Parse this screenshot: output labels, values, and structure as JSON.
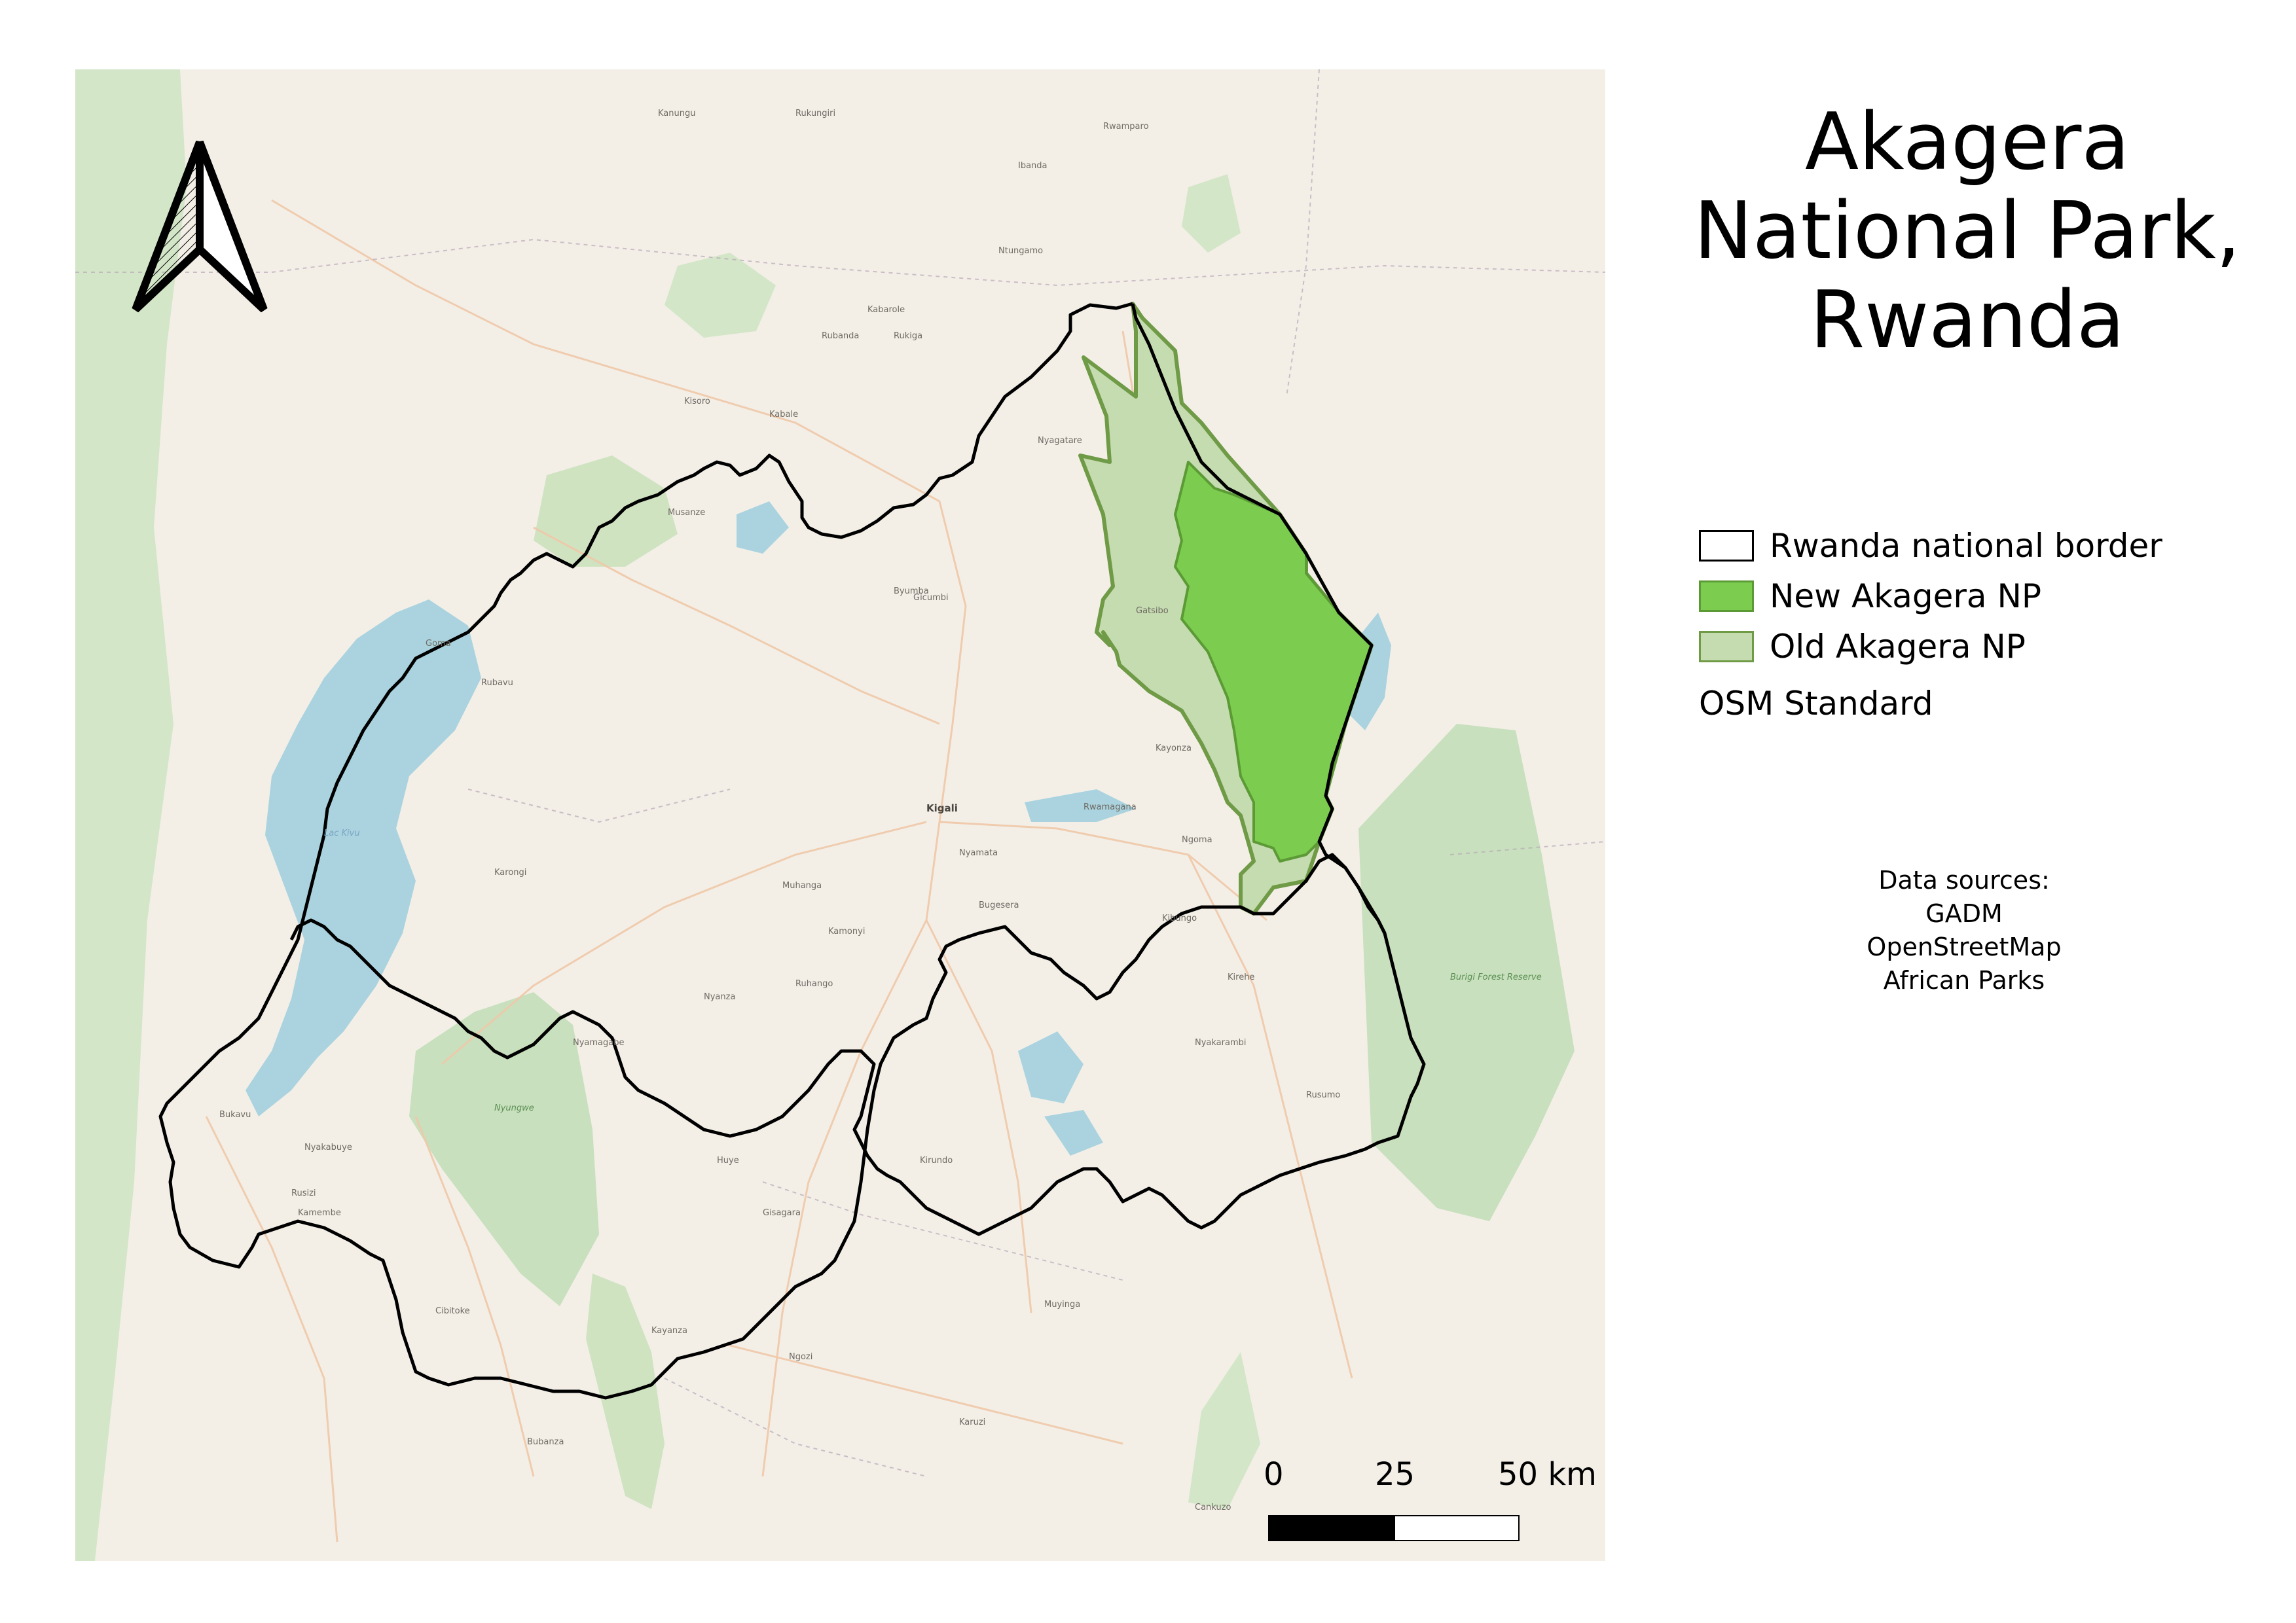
{
  "title": "Akagera\nNational Park,\nRwanda",
  "legend": {
    "items": [
      {
        "label": "Rwanda national border",
        "fill": "#ffffff",
        "stroke": "#000000"
      },
      {
        "label": "New Akagera NP",
        "fill": "#7ccd4f",
        "stroke": "#5b9a35"
      },
      {
        "label": "Old Akagera NP",
        "fill": "#c5dbb0",
        "stroke": "#6f9a46"
      }
    ],
    "basemap_label": "OSM Standard"
  },
  "sources": {
    "heading": "Data sources:",
    "items": [
      "GADM",
      "OpenStreetMap",
      "African Parks"
    ]
  },
  "scale_bar": {
    "ticks": [
      "0",
      "25",
      "50 km"
    ]
  },
  "north_arrow": {
    "icon": "north-arrow-icon"
  },
  "map": {
    "colors": {
      "land": "#f3efe7",
      "water": "#aad3df",
      "forest": "#c8e0bd",
      "border": "#000000",
      "new_np": "#7ccd4f",
      "old_np": "#c5dbb0",
      "roads": "#f0c8a8",
      "admin": "#b8a8b8"
    },
    "place_labels": [
      {
        "text": "Kigali",
        "kind": "city"
      },
      {
        "text": "Musanze",
        "kind": "town"
      },
      {
        "text": "Muhanga",
        "kind": "town"
      },
      {
        "text": "Huye",
        "kind": "town"
      },
      {
        "text": "Kayanza",
        "kind": "town"
      },
      {
        "text": "Ngozi",
        "kind": "town"
      },
      {
        "text": "Muyinga",
        "kind": "town"
      },
      {
        "text": "Kirundo",
        "kind": "town"
      },
      {
        "text": "Cibitoke",
        "kind": "town"
      },
      {
        "text": "Bubanza",
        "kind": "town"
      },
      {
        "text": "Karuzi",
        "kind": "town"
      },
      {
        "text": "Cankuzo",
        "kind": "town"
      },
      {
        "text": "Rukungiri",
        "kind": "town"
      },
      {
        "text": "Rwamparo",
        "kind": "town"
      },
      {
        "text": "Ntungamo",
        "kind": "town"
      },
      {
        "text": "Kabale",
        "kind": "town"
      },
      {
        "text": "Rubanda",
        "kind": "town"
      },
      {
        "text": "Kisoro",
        "kind": "town"
      },
      {
        "text": "Nyagatare",
        "kind": "town"
      },
      {
        "text": "Goma",
        "kind": "town"
      },
      {
        "text": "Bukavu",
        "kind": "town"
      },
      {
        "text": "Rubavu",
        "kind": "town"
      },
      {
        "text": "Karongi",
        "kind": "town"
      },
      {
        "text": "Nyanza",
        "kind": "town"
      },
      {
        "text": "Rwamagana",
        "kind": "town"
      },
      {
        "text": "Kayonza",
        "kind": "town"
      },
      {
        "text": "Kibungo",
        "kind": "town"
      },
      {
        "text": "Bugesera",
        "kind": "town"
      },
      {
        "text": "Lac Kivu",
        "kind": "water"
      },
      {
        "text": "Burigi Forest Reserve",
        "kind": "park"
      },
      {
        "text": "Nyungwe",
        "kind": "park"
      },
      {
        "text": "Kanungu",
        "kind": "town"
      },
      {
        "text": "Rukiga",
        "kind": "town"
      },
      {
        "text": "Gicumbi",
        "kind": "town"
      },
      {
        "text": "Byumba",
        "kind": "town"
      },
      {
        "text": "Nyamagabe",
        "kind": "town"
      },
      {
        "text": "Rusizi",
        "kind": "town"
      },
      {
        "text": "Kamembe",
        "kind": "town"
      },
      {
        "text": "Ruhango",
        "kind": "town"
      },
      {
        "text": "Nyamata",
        "kind": "town"
      },
      {
        "text": "Gisagara",
        "kind": "town"
      },
      {
        "text": "Kamonyi",
        "kind": "town"
      },
      {
        "text": "Ngoma",
        "kind": "town"
      },
      {
        "text": "Kirehe",
        "kind": "town"
      },
      {
        "text": "Nyakarambi",
        "kind": "town"
      },
      {
        "text": "Rusumo",
        "kind": "town"
      },
      {
        "text": "Ibanda",
        "kind": "town"
      },
      {
        "text": "Kabarole",
        "kind": "town"
      },
      {
        "text": "Gatsibo",
        "kind": "town"
      },
      {
        "text": "Nyakabuye",
        "kind": "town"
      }
    ]
  }
}
